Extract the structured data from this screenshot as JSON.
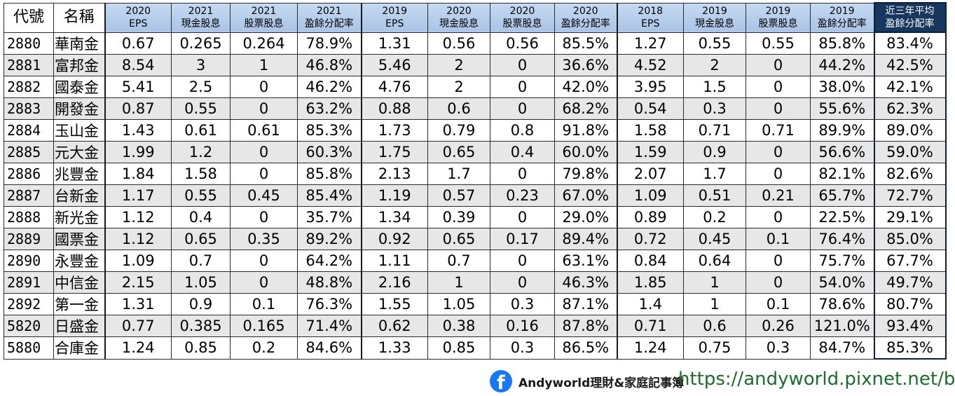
{
  "table": {
    "header": {
      "code": "代號",
      "name": "名稱",
      "groups": [
        [
          [
            "2020",
            "EPS"
          ],
          [
            "2021",
            "現金股息"
          ],
          [
            "2021",
            "股票股息"
          ],
          [
            "2021",
            "盈餘分配率"
          ]
        ],
        [
          [
            "2019",
            "EPS"
          ],
          [
            "2020",
            "現金股息"
          ],
          [
            "2020",
            "股票股息"
          ],
          [
            "2020",
            "盈餘分配率"
          ]
        ],
        [
          [
            "2018",
            "EPS"
          ],
          [
            "2019",
            "現金股息"
          ],
          [
            "2019",
            "股票股息"
          ],
          [
            "2019",
            "盈餘分配率"
          ]
        ]
      ],
      "avg": [
        "近三年平均",
        "盈餘分配率"
      ]
    },
    "rows": [
      [
        "2880",
        "華南金",
        "0.67",
        "0.265",
        "0.264",
        "78.9%",
        "1.31",
        "0.56",
        "0.56",
        "85.5%",
        "1.27",
        "0.55",
        "0.55",
        "85.8%",
        "83.4%"
      ],
      [
        "2881",
        "富邦金",
        "8.54",
        "3",
        "1",
        "46.8%",
        "5.46",
        "2",
        "0",
        "36.6%",
        "4.52",
        "2",
        "0",
        "44.2%",
        "42.5%"
      ],
      [
        "2882",
        "國泰金",
        "5.41",
        "2.5",
        "0",
        "46.2%",
        "4.76",
        "2",
        "0",
        "42.0%",
        "3.95",
        "1.5",
        "0",
        "38.0%",
        "42.1%"
      ],
      [
        "2883",
        "開發金",
        "0.87",
        "0.55",
        "0",
        "63.2%",
        "0.88",
        "0.6",
        "0",
        "68.2%",
        "0.54",
        "0.3",
        "0",
        "55.6%",
        "62.3%"
      ],
      [
        "2884",
        "玉山金",
        "1.43",
        "0.61",
        "0.61",
        "85.3%",
        "1.73",
        "0.79",
        "0.8",
        "91.8%",
        "1.58",
        "0.71",
        "0.71",
        "89.9%",
        "89.0%"
      ],
      [
        "2885",
        "元大金",
        "1.99",
        "1.2",
        "0",
        "60.3%",
        "1.75",
        "0.65",
        "0.4",
        "60.0%",
        "1.59",
        "0.9",
        "0",
        "56.6%",
        "59.0%"
      ],
      [
        "2886",
        "兆豐金",
        "1.84",
        "1.58",
        "0",
        "85.8%",
        "2.13",
        "1.7",
        "0",
        "79.8%",
        "2.07",
        "1.7",
        "0",
        "82.1%",
        "82.6%"
      ],
      [
        "2887",
        "台新金",
        "1.17",
        "0.55",
        "0.45",
        "85.4%",
        "1.19",
        "0.57",
        "0.23",
        "67.0%",
        "1.09",
        "0.51",
        "0.21",
        "65.7%",
        "72.7%"
      ],
      [
        "2888",
        "新光金",
        "1.12",
        "0.4",
        "0",
        "35.7%",
        "1.34",
        "0.39",
        "0",
        "29.0%",
        "0.89",
        "0.2",
        "0",
        "22.5%",
        "29.1%"
      ],
      [
        "2889",
        "國票金",
        "1.12",
        "0.65",
        "0.35",
        "89.2%",
        "0.92",
        "0.65",
        "0.17",
        "89.4%",
        "0.72",
        "0.45",
        "0.1",
        "76.4%",
        "85.0%"
      ],
      [
        "2890",
        "永豐金",
        "1.09",
        "0.7",
        "0",
        "64.2%",
        "1.11",
        "0.7",
        "0",
        "63.1%",
        "0.84",
        "0.64",
        "0",
        "75.7%",
        "67.7%"
      ],
      [
        "2891",
        "中信金",
        "2.15",
        "1.05",
        "0",
        "48.8%",
        "2.16",
        "1",
        "0",
        "46.3%",
        "1.85",
        "1",
        "0",
        "54.0%",
        "49.7%"
      ],
      [
        "2892",
        "第一金",
        "1.31",
        "0.9",
        "0.1",
        "76.3%",
        "1.55",
        "1.05",
        "0.3",
        "87.1%",
        "1.4",
        "1",
        "0.1",
        "78.6%",
        "80.7%"
      ],
      [
        "5820",
        "日盛金",
        "0.77",
        "0.385",
        "0.165",
        "71.4%",
        "0.62",
        "0.38",
        "0.16",
        "87.8%",
        "0.71",
        "0.6",
        "0.26",
        "121.0%",
        "93.4%"
      ],
      [
        "5880",
        "合庫金",
        "1.24",
        "0.85",
        "0.2",
        "84.6%",
        "1.33",
        "0.85",
        "0.3",
        "86.5%",
        "1.24",
        "0.75",
        "0.3",
        "84.7%",
        "85.3%"
      ]
    ]
  },
  "footer": {
    "facebook_icon": "facebook-logo-icon",
    "facebook_logo_letter": "f",
    "facebook_page": "Andyworld理財&家庭記事簿",
    "blog_url": "https://andyworld.pixnet.net/blog"
  }
}
